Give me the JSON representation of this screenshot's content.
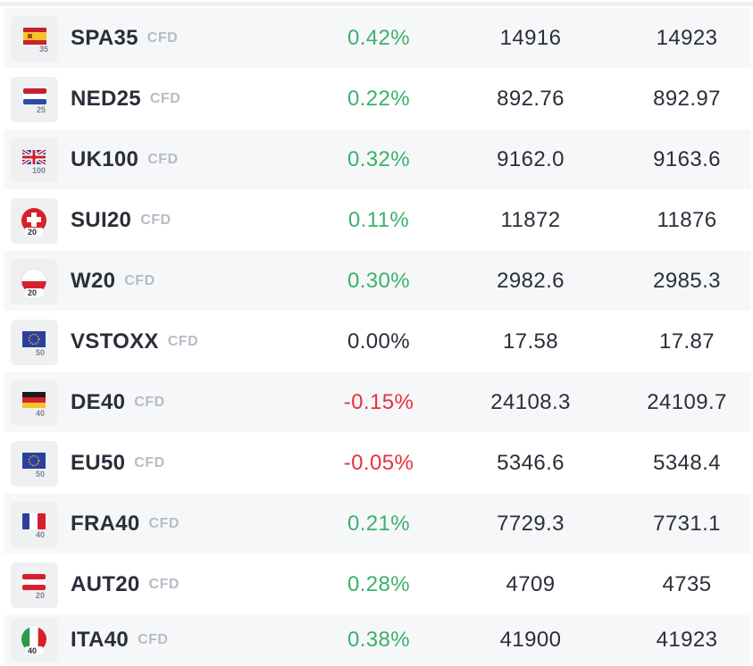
{
  "instruments": [
    {
      "symbol": "SPA35",
      "type": "CFD",
      "change": "0.42%",
      "bid": "14916",
      "ask": "14923",
      "flag": "spain-flag-icon",
      "badge": "35",
      "direction": "pos"
    },
    {
      "symbol": "NED25",
      "type": "CFD",
      "change": "0.22%",
      "bid": "892.76",
      "ask": "892.97",
      "flag": "netherlands-flag-icon",
      "badge": "25",
      "direction": "pos"
    },
    {
      "symbol": "UK100",
      "type": "CFD",
      "change": "0.32%",
      "bid": "9162.0",
      "ask": "9163.6",
      "flag": "uk-flag-icon",
      "badge": "100",
      "direction": "pos"
    },
    {
      "symbol": "SUI20",
      "type": "CFD",
      "change": "0.11%",
      "bid": "11872",
      "ask": "11876",
      "flag": "switzerland-flag-icon",
      "badge": "20",
      "direction": "pos"
    },
    {
      "symbol": "W20",
      "type": "CFD",
      "change": "0.30%",
      "bid": "2982.6",
      "ask": "2985.3",
      "flag": "poland-flag-icon",
      "badge": "20",
      "direction": "pos"
    },
    {
      "symbol": "VSTOXX",
      "type": "CFD",
      "change": "0.00%",
      "bid": "17.58",
      "ask": "17.87",
      "flag": "eu-flag-icon",
      "badge": "50",
      "direction": "zero"
    },
    {
      "symbol": "DE40",
      "type": "CFD",
      "change": "-0.15%",
      "bid": "24108.3",
      "ask": "24109.7",
      "flag": "germany-flag-icon",
      "badge": "40",
      "direction": "neg"
    },
    {
      "symbol": "EU50",
      "type": "CFD",
      "change": "-0.05%",
      "bid": "5346.6",
      "ask": "5348.4",
      "flag": "eu-flag-icon",
      "badge": "50",
      "direction": "neg"
    },
    {
      "symbol": "FRA40",
      "type": "CFD",
      "change": "0.21%",
      "bid": "7729.3",
      "ask": "7731.1",
      "flag": "france-flag-icon",
      "badge": "40",
      "direction": "pos"
    },
    {
      "symbol": "AUT20",
      "type": "CFD",
      "change": "0.28%",
      "bid": "4709",
      "ask": "4735",
      "flag": "austria-flag-icon",
      "badge": "20",
      "direction": "pos"
    },
    {
      "symbol": "ITA40",
      "type": "CFD",
      "change": "0.38%",
      "bid": "41900",
      "ask": "41923",
      "flag": "italy-flag-icon",
      "badge": "40",
      "direction": "pos"
    }
  ],
  "colors": {
    "positive": "#3ab16d",
    "negative": "#e8323c",
    "neutral": "#2a2e39",
    "muted": "#b6bcc6"
  }
}
